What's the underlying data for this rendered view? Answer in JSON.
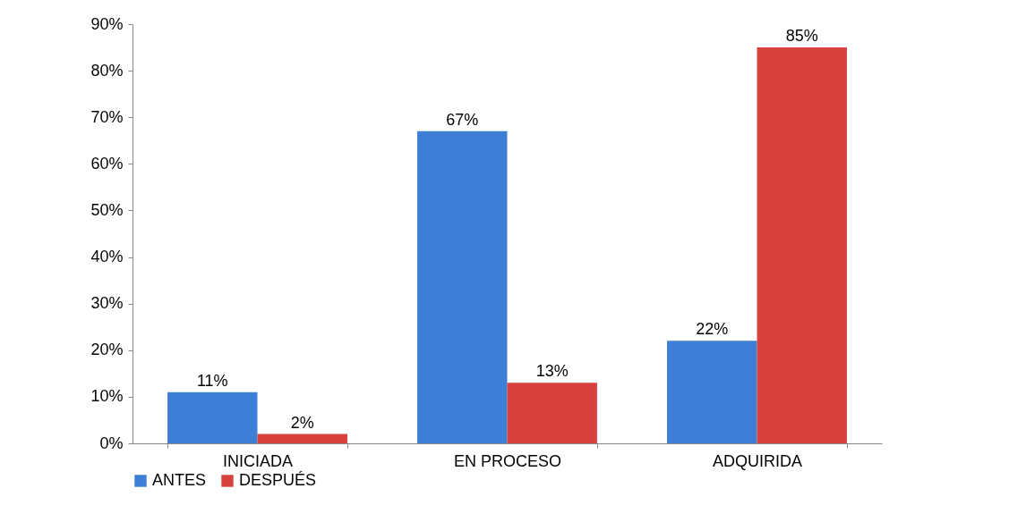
{
  "chart_data": {
    "type": "bar",
    "categories": [
      "INICIADA",
      "EN PROCESO",
      "ADQUIRIDA"
    ],
    "series": [
      {
        "name": "ANTES",
        "color": "#3d7fd6",
        "values": [
          11,
          67,
          22
        ],
        "value_labels": [
          "11%",
          "67%",
          "22%"
        ]
      },
      {
        "name": "DESPUÉS",
        "color": "#d8423e",
        "values": [
          2,
          13,
          85
        ],
        "value_labels": [
          "2%",
          "13%",
          "85%"
        ]
      }
    ],
    "ylim": [
      0,
      90
    ],
    "yticks": [
      {
        "value": 0,
        "label": "0%"
      },
      {
        "value": 10,
        "label": "10%"
      },
      {
        "value": 20,
        "label": "20%"
      },
      {
        "value": 30,
        "label": "30%"
      },
      {
        "value": 40,
        "label": "40%"
      },
      {
        "value": 50,
        "label": "50%"
      },
      {
        "value": 60,
        "label": "60%"
      },
      {
        "value": 70,
        "label": "70%"
      },
      {
        "value": 80,
        "label": "80%"
      },
      {
        "value": 90,
        "label": "90%"
      }
    ],
    "grid": false,
    "legend": "bottom"
  }
}
